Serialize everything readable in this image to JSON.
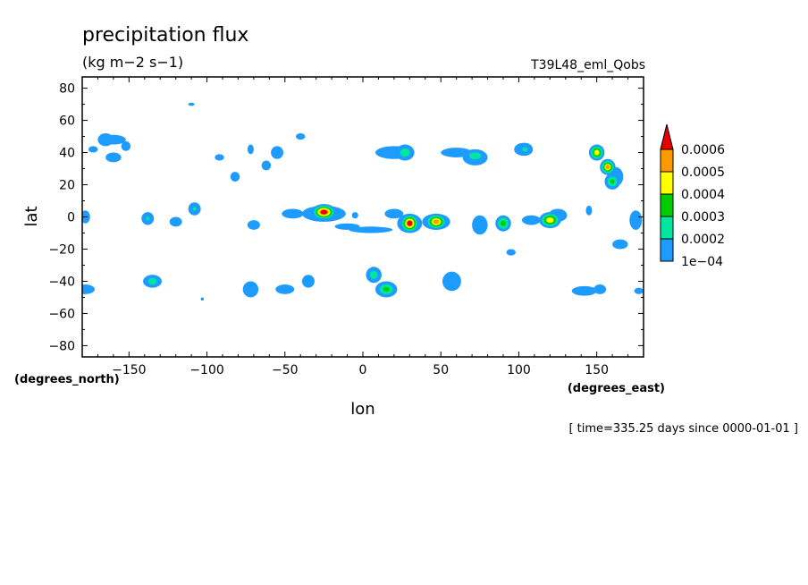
{
  "chart_data": {
    "type": "heatmap",
    "title": "precipitation flux",
    "units": "(kg m−2 s−1)",
    "dataset": "T39L48_eml_Qobs",
    "xlabel": "lon",
    "ylabel": "lat",
    "x_units": "(degrees_east)",
    "y_units": "(degrees_north)",
    "time_label": "[ time=335.25 days since 0000-01-01 ]",
    "xlim": [
      -180,
      180
    ],
    "ylim": [
      -87,
      87
    ],
    "x_ticks": [
      -150,
      -100,
      -50,
      0,
      50,
      100,
      150
    ],
    "y_ticks": [
      80,
      60,
      40,
      20,
      0,
      -20,
      -40,
      -60,
      -80
    ],
    "x_tick_labels": [
      "−150",
      "−100",
      "−50",
      "0",
      "50",
      "100",
      "150"
    ],
    "y_tick_labels": [
      "80",
      "60",
      "40",
      "20",
      "0",
      "−20",
      "−40",
      "−60",
      "−80"
    ],
    "colorbar": {
      "levels": [
        0.0001,
        0.0002,
        0.0003,
        0.0004,
        0.0005,
        0.0006
      ],
      "labels": [
        "1e−04",
        "0.0002",
        "0.0003",
        "0.0004",
        "0.0005",
        "0.0006"
      ],
      "colors": [
        "#1e9bff",
        "#00e6a0",
        "#00cc00",
        "#ffff00",
        "#ff9900",
        "#e60000"
      ],
      "extend": "max"
    },
    "features": [
      {
        "lon": -25,
        "lat": 3,
        "peak": 0.00065,
        "w": 8,
        "h": 5
      },
      {
        "lon": 30,
        "lat": -4,
        "peak": 0.00062,
        "w": 6,
        "h": 6
      },
      {
        "lon": 47,
        "lat": -3,
        "peak": 0.00055,
        "w": 7,
        "h": 5
      },
      {
        "lon": 120,
        "lat": -2,
        "peak": 0.00048,
        "w": 7,
        "h": 5
      },
      {
        "lon": 90,
        "lat": -4,
        "peak": 0.00035,
        "w": 5,
        "h": 5
      },
      {
        "lon": 150,
        "lat": 40,
        "peak": 0.00048,
        "w": 5,
        "h": 5
      },
      {
        "lon": 157,
        "lat": 31,
        "peak": 0.00052,
        "w": 5,
        "h": 5
      },
      {
        "lon": 160,
        "lat": 22,
        "peak": 0.0003,
        "w": 5,
        "h": 5
      },
      {
        "lon": 15,
        "lat": -45,
        "peak": 0.0003,
        "w": 7,
        "h": 5
      },
      {
        "lon": 7,
        "lat": -36,
        "peak": 0.00025,
        "w": 5,
        "h": 5
      },
      {
        "lon": 27,
        "lat": 40,
        "peak": 0.00026,
        "w": 6,
        "h": 5
      },
      {
        "lon": 72,
        "lat": 38,
        "peak": 0.00027,
        "w": 7,
        "h": 4
      },
      {
        "lon": 104,
        "lat": 42,
        "peak": 0.00022,
        "w": 5,
        "h": 4
      },
      {
        "lon": -135,
        "lat": -40,
        "peak": 0.00026,
        "w": 5,
        "h": 4
      },
      {
        "lon": -138,
        "lat": -1,
        "peak": 0.0002,
        "w": 4,
        "h": 4
      },
      {
        "lon": -108,
        "lat": 5,
        "peak": 0.0002,
        "w": 4,
        "h": 4
      },
      {
        "lon": -165,
        "lat": 48,
        "peak": 0.00018,
        "w": 5,
        "h": 4
      }
    ],
    "patches": [
      {
        "lon": -160,
        "lat": 48,
        "w": 8,
        "h": 3
      },
      {
        "lon": -152,
        "lat": 44,
        "w": 3,
        "h": 3
      },
      {
        "lon": -160,
        "lat": 37,
        "w": 5,
        "h": 3
      },
      {
        "lon": -173,
        "lat": 42,
        "w": 3,
        "h": 2
      },
      {
        "lon": -178,
        "lat": 0,
        "w": 3,
        "h": 4
      },
      {
        "lon": -178,
        "lat": -45,
        "w": 6,
        "h": 3
      },
      {
        "lon": -135,
        "lat": -40,
        "w": 6,
        "h": 4
      },
      {
        "lon": -120,
        "lat": -3,
        "w": 4,
        "h": 3
      },
      {
        "lon": -92,
        "lat": 37,
        "w": 3,
        "h": 2
      },
      {
        "lon": -82,
        "lat": 25,
        "w": 3,
        "h": 3
      },
      {
        "lon": -72,
        "lat": 42,
        "w": 2,
        "h": 3
      },
      {
        "lon": -72,
        "lat": -45,
        "w": 5,
        "h": 5
      },
      {
        "lon": -62,
        "lat": 32,
        "w": 3,
        "h": 3
      },
      {
        "lon": -55,
        "lat": 40,
        "w": 4,
        "h": 4
      },
      {
        "lon": -70,
        "lat": -5,
        "w": 4,
        "h": 3
      },
      {
        "lon": -50,
        "lat": -45,
        "w": 6,
        "h": 3
      },
      {
        "lon": -35,
        "lat": -40,
        "w": 4,
        "h": 4
      },
      {
        "lon": -45,
        "lat": 2,
        "w": 7,
        "h": 3
      },
      {
        "lon": -40,
        "lat": 50,
        "w": 3,
        "h": 2
      },
      {
        "lon": -25,
        "lat": 2,
        "w": 14,
        "h": 5
      },
      {
        "lon": -10,
        "lat": -6,
        "w": 8,
        "h": 2
      },
      {
        "lon": 5,
        "lat": -8,
        "w": 14,
        "h": 2
      },
      {
        "lon": 20,
        "lat": 40,
        "w": 12,
        "h": 4
      },
      {
        "lon": 20,
        "lat": 2,
        "w": 6,
        "h": 3
      },
      {
        "lon": 30,
        "lat": -4,
        "w": 8,
        "h": 6
      },
      {
        "lon": 47,
        "lat": -3,
        "w": 9,
        "h": 5
      },
      {
        "lon": 60,
        "lat": 40,
        "w": 10,
        "h": 3
      },
      {
        "lon": 72,
        "lat": 37,
        "w": 8,
        "h": 5
      },
      {
        "lon": 57,
        "lat": -40,
        "w": 6,
        "h": 6
      },
      {
        "lon": 75,
        "lat": -5,
        "w": 5,
        "h": 6
      },
      {
        "lon": 103,
        "lat": 42,
        "w": 6,
        "h": 4
      },
      {
        "lon": 108,
        "lat": -2,
        "w": 6,
        "h": 3
      },
      {
        "lon": 125,
        "lat": 1,
        "w": 6,
        "h": 4
      },
      {
        "lon": 95,
        "lat": -22,
        "w": 3,
        "h": 2
      },
      {
        "lon": 142,
        "lat": -46,
        "w": 8,
        "h": 3
      },
      {
        "lon": 152,
        "lat": -45,
        "w": 4,
        "h": 3
      },
      {
        "lon": 162,
        "lat": 25,
        "w": 5,
        "h": 6
      },
      {
        "lon": 145,
        "lat": 4,
        "w": 2,
        "h": 3
      },
      {
        "lon": 165,
        "lat": -17,
        "w": 5,
        "h": 3
      },
      {
        "lon": 175,
        "lat": -2,
        "w": 4,
        "h": 6
      },
      {
        "lon": 177,
        "lat": -46,
        "w": 3,
        "h": 2
      },
      {
        "lon": -110,
        "lat": 70,
        "w": 2,
        "h": 1
      },
      {
        "lon": -103,
        "lat": -51,
        "w": 1,
        "h": 1
      },
      {
        "lon": -5,
        "lat": 1,
        "w": 2,
        "h": 2
      }
    ]
  }
}
